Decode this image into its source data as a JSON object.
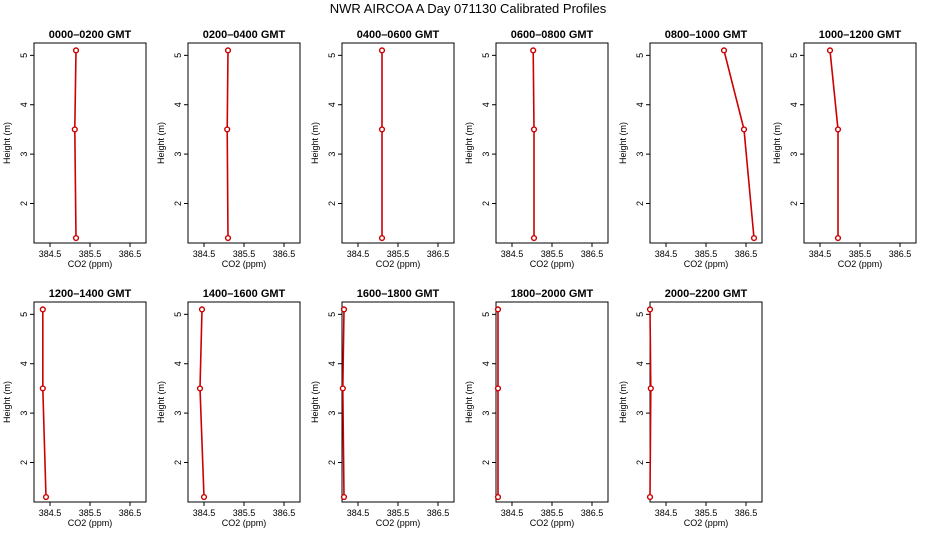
{
  "figure": {
    "title": "NWR AIRCOA A  Day 071130  Calibrated Profiles"
  },
  "style": {
    "line_color": "#cc0000",
    "point_color": "#cc0000",
    "axis_color": "#000000"
  },
  "chart_data": [
    {
      "type": "line",
      "title": "0000–0200 GMT",
      "xlabel": "CO2 (ppm)",
      "ylabel": "Height (m)",
      "xlim": [
        384.1,
        386.9
      ],
      "ylim": [
        1.2,
        5.25
      ],
      "xticks": [
        "384.5",
        "385.5",
        "386.5"
      ],
      "xtick_values": [
        384.5,
        385.5,
        386.5
      ],
      "yticks": [
        "2",
        "3",
        "4",
        "5"
      ],
      "ytick_values": [
        2,
        3,
        4,
        5
      ],
      "series": [
        {
          "x": [
            385.15,
            385.12,
            385.15
          ],
          "y": [
            1.3,
            3.5,
            5.1
          ]
        }
      ]
    },
    {
      "type": "line",
      "title": "0200–0400 GMT",
      "xlabel": "CO2 (ppm)",
      "ylabel": "Height (m)",
      "xlim": [
        384.1,
        386.9
      ],
      "ylim": [
        1.2,
        5.25
      ],
      "xticks": [
        "384.5",
        "385.5",
        "386.5"
      ],
      "xtick_values": [
        384.5,
        385.5,
        386.5
      ],
      "yticks": [
        "2",
        "3",
        "4",
        "5"
      ],
      "ytick_values": [
        2,
        3,
        4,
        5
      ],
      "series": [
        {
          "x": [
            385.1,
            385.08,
            385.1
          ],
          "y": [
            1.3,
            3.5,
            5.1
          ]
        }
      ]
    },
    {
      "type": "line",
      "title": "0400–0600 GMT",
      "xlabel": "CO2 (ppm)",
      "ylabel": "Height (m)",
      "xlim": [
        384.1,
        386.9
      ],
      "ylim": [
        1.2,
        5.25
      ],
      "xticks": [
        "384.5",
        "385.5",
        "386.5"
      ],
      "xtick_values": [
        384.5,
        385.5,
        386.5
      ],
      "yticks": [
        "2",
        "3",
        "4",
        "5"
      ],
      "ytick_values": [
        2,
        3,
        4,
        5
      ],
      "series": [
        {
          "x": [
            385.1,
            385.1,
            385.1
          ],
          "y": [
            1.3,
            3.5,
            5.1
          ]
        }
      ]
    },
    {
      "type": "line",
      "title": "0600–0800 GMT",
      "xlabel": "CO2 (ppm)",
      "ylabel": "Height (m)",
      "xlim": [
        384.1,
        386.9
      ],
      "ylim": [
        1.2,
        5.25
      ],
      "xticks": [
        "384.5",
        "385.5",
        "386.5"
      ],
      "xtick_values": [
        384.5,
        385.5,
        386.5
      ],
      "yticks": [
        "2",
        "3",
        "4",
        "5"
      ],
      "ytick_values": [
        2,
        3,
        4,
        5
      ],
      "series": [
        {
          "x": [
            385.05,
            385.05,
            385.03
          ],
          "y": [
            1.3,
            3.5,
            5.1
          ]
        }
      ]
    },
    {
      "type": "line",
      "title": "0800–1000 GMT",
      "xlabel": "CO2 (ppm)",
      "ylabel": "Height (m)",
      "xlim": [
        384.1,
        386.9
      ],
      "ylim": [
        1.2,
        5.25
      ],
      "xticks": [
        "384.5",
        "385.5",
        "386.5"
      ],
      "xtick_values": [
        384.5,
        385.5,
        386.5
      ],
      "yticks": [
        "2",
        "3",
        "4",
        "5"
      ],
      "ytick_values": [
        2,
        3,
        4,
        5
      ],
      "series": [
        {
          "x": [
            386.7,
            386.45,
            385.95
          ],
          "y": [
            1.3,
            3.5,
            5.1
          ]
        }
      ]
    },
    {
      "type": "line",
      "title": "1000–1200 GMT",
      "xlabel": "CO2 (ppm)",
      "ylabel": "Height (m)",
      "xlim": [
        384.1,
        386.9
      ],
      "ylim": [
        1.2,
        5.25
      ],
      "xticks": [
        "384.5",
        "385.5",
        "386.5"
      ],
      "xtick_values": [
        384.5,
        385.5,
        386.5
      ],
      "yticks": [
        "2",
        "3",
        "4",
        "5"
      ],
      "ytick_values": [
        2,
        3,
        4,
        5
      ],
      "series": [
        {
          "x": [
            384.95,
            384.95,
            384.75
          ],
          "y": [
            1.3,
            3.5,
            5.1
          ]
        }
      ]
    },
    {
      "type": "line",
      "title": "1200–1400 GMT",
      "xlabel": "CO2 (ppm)",
      "ylabel": "Height (m)",
      "xlim": [
        384.1,
        386.9
      ],
      "ylim": [
        1.2,
        5.25
      ],
      "xticks": [
        "384.5",
        "385.5",
        "386.5"
      ],
      "xtick_values": [
        384.5,
        385.5,
        386.5
      ],
      "yticks": [
        "2",
        "3",
        "4",
        "5"
      ],
      "ytick_values": [
        2,
        3,
        4,
        5
      ],
      "series": [
        {
          "x": [
            384.4,
            384.32,
            384.32
          ],
          "y": [
            1.3,
            3.5,
            5.1
          ]
        }
      ]
    },
    {
      "type": "line",
      "title": "1400–1600 GMT",
      "xlabel": "CO2 (ppm)",
      "ylabel": "Height (m)",
      "xlim": [
        384.1,
        386.9
      ],
      "ylim": [
        1.2,
        5.25
      ],
      "xticks": [
        "384.5",
        "385.5",
        "386.5"
      ],
      "xtick_values": [
        384.5,
        385.5,
        386.5
      ],
      "yticks": [
        "2",
        "3",
        "4",
        "5"
      ],
      "ytick_values": [
        2,
        3,
        4,
        5
      ],
      "series": [
        {
          "x": [
            384.5,
            384.4,
            384.45
          ],
          "y": [
            1.3,
            3.5,
            5.1
          ]
        }
      ]
    },
    {
      "type": "line",
      "title": "1600–1800 GMT",
      "xlabel": "CO2 (ppm)",
      "ylabel": "Height (m)",
      "xlim": [
        384.1,
        386.9
      ],
      "ylim": [
        1.2,
        5.25
      ],
      "xticks": [
        "384.5",
        "385.5",
        "386.5"
      ],
      "xtick_values": [
        384.5,
        385.5,
        386.5
      ],
      "yticks": [
        "2",
        "3",
        "4",
        "5"
      ],
      "ytick_values": [
        2,
        3,
        4,
        5
      ],
      "series": [
        {
          "x": [
            384.15,
            384.12,
            384.15
          ],
          "y": [
            1.3,
            3.5,
            5.1
          ]
        }
      ]
    },
    {
      "type": "line",
      "title": "1800–2000 GMT",
      "xlabel": "CO2 (ppm)",
      "ylabel": "Height (m)",
      "xlim": [
        384.1,
        386.9
      ],
      "ylim": [
        1.2,
        5.25
      ],
      "xticks": [
        "384.5",
        "385.5",
        "386.5"
      ],
      "xtick_values": [
        384.5,
        385.5,
        386.5
      ],
      "yticks": [
        "2",
        "3",
        "4",
        "5"
      ],
      "ytick_values": [
        2,
        3,
        4,
        5
      ],
      "series": [
        {
          "x": [
            384.15,
            384.15,
            384.15
          ],
          "y": [
            1.3,
            3.5,
            5.1
          ]
        }
      ]
    },
    {
      "type": "line",
      "title": "2000–2200 GMT",
      "xlabel": "CO2 (ppm)",
      "ylabel": "Height (m)",
      "xlim": [
        384.1,
        386.9
      ],
      "ylim": [
        1.2,
        5.25
      ],
      "xticks": [
        "384.5",
        "385.5",
        "386.5"
      ],
      "xtick_values": [
        384.5,
        385.5,
        386.5
      ],
      "yticks": [
        "2",
        "3",
        "4",
        "5"
      ],
      "ytick_values": [
        2,
        3,
        4,
        5
      ],
      "series": [
        {
          "x": [
            384.1,
            384.12,
            384.1
          ],
          "y": [
            1.3,
            3.5,
            5.1
          ]
        }
      ]
    }
  ]
}
